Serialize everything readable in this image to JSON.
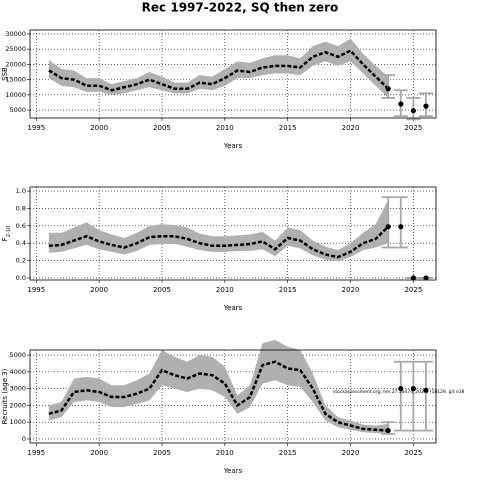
{
  "title": "Rec 1997-2022, SQ then zero",
  "chart_data": [
    {
      "type": "line",
      "xlabel": "Years",
      "ylabel": "SSB",
      "xlim": [
        1994.5,
        2026.8
      ],
      "xticks": [
        1995,
        2000,
        2005,
        2010,
        2015,
        2020,
        2025
      ],
      "ylim": [
        2400,
        31300
      ],
      "yticks": [
        5000,
        10000,
        15000,
        20000,
        25000,
        30000
      ],
      "grid": true,
      "color": "#000000",
      "band_color": "#b0b0b0",
      "errorbar_color": "#a8a8a8",
      "x": [
        1996,
        1997,
        1998,
        1999,
        2000,
        2001,
        2002,
        2003,
        2004,
        2005,
        2006,
        2007,
        2008,
        2009,
        2010,
        2011,
        2012,
        2013,
        2014,
        2015,
        2016,
        2017,
        2018,
        2019,
        2020,
        2021,
        2022,
        2023
      ],
      "values": [
        18000,
        15500,
        15000,
        13000,
        13000,
        11500,
        12500,
        13500,
        15000,
        13500,
        12000,
        12000,
        14000,
        13500,
        15500,
        18000,
        17500,
        19000,
        19500,
        19500,
        19000,
        22500,
        24000,
        22500,
        24500,
        20000,
        16000,
        12000
      ],
      "lower": [
        15500,
        13000,
        12500,
        11000,
        11000,
        10000,
        10500,
        11500,
        12500,
        11500,
        10500,
        10500,
        12000,
        11500,
        13000,
        15500,
        15500,
        16500,
        17000,
        17000,
        16500,
        19500,
        21000,
        19500,
        21000,
        17000,
        13000,
        9000
      ],
      "upper": [
        21500,
        18500,
        18000,
        15500,
        15500,
        13500,
        14500,
        15500,
        17500,
        16000,
        14000,
        14000,
        16500,
        16000,
        18500,
        21000,
        20500,
        22000,
        23000,
        23000,
        22000,
        26000,
        27500,
        26000,
        28500,
        23500,
        19500,
        16000
      ],
      "projection": {
        "x": [
          2023,
          2024,
          2025,
          2026
        ],
        "values": [
          12000,
          7000,
          4800,
          6300
        ],
        "lower": [
          9000,
          3000,
          2000,
          3000
        ],
        "upper": [
          16500,
          11500,
          9000,
          10500
        ]
      }
    },
    {
      "type": "line",
      "xlabel": "Years",
      "ylabel": "F",
      "ylabel_sub": "2-10",
      "xlim": [
        1994.5,
        2026.8
      ],
      "xticks": [
        1995,
        2000,
        2005,
        2010,
        2015,
        2020,
        2025
      ],
      "ylim": [
        -0.024,
        1.047
      ],
      "yticks": [
        {
          "value": 0,
          "label": "0.0"
        },
        0.2,
        0.4,
        0.6,
        0.8,
        {
          "value": 1,
          "label": "1.0"
        }
      ],
      "grid": true,
      "color": "#000000",
      "band_color": "#b0b0b0",
      "errorbar_color": "#a8a8a8",
      "x": [
        1996,
        1997,
        1998,
        1999,
        2000,
        2001,
        2002,
        2003,
        2004,
        2005,
        2006,
        2007,
        2008,
        2009,
        2010,
        2011,
        2012,
        2013,
        2014,
        2015,
        2016,
        2017,
        2018,
        2019,
        2020,
        2021,
        2022,
        2023
      ],
      "values": [
        0.37,
        0.38,
        0.43,
        0.48,
        0.42,
        0.38,
        0.35,
        0.4,
        0.47,
        0.48,
        0.48,
        0.45,
        0.4,
        0.37,
        0.37,
        0.38,
        0.39,
        0.42,
        0.33,
        0.46,
        0.43,
        0.33,
        0.27,
        0.24,
        0.3,
        0.4,
        0.45,
        0.59
      ],
      "lower": [
        0.29,
        0.3,
        0.34,
        0.38,
        0.33,
        0.3,
        0.27,
        0.31,
        0.38,
        0.39,
        0.39,
        0.36,
        0.32,
        0.3,
        0.3,
        0.31,
        0.31,
        0.33,
        0.25,
        0.37,
        0.34,
        0.26,
        0.21,
        0.19,
        0.24,
        0.32,
        0.35,
        0.4
      ],
      "upper": [
        0.52,
        0.52,
        0.58,
        0.64,
        0.55,
        0.5,
        0.46,
        0.52,
        0.6,
        0.62,
        0.61,
        0.58,
        0.51,
        0.48,
        0.48,
        0.49,
        0.5,
        0.53,
        0.43,
        0.58,
        0.55,
        0.43,
        0.36,
        0.32,
        0.4,
        0.52,
        0.62,
        0.9
      ],
      "projection": {
        "x": [
          2023,
          2024,
          2025,
          2026
        ],
        "values": [
          0.59,
          0.59,
          0,
          0
        ],
        "lower": [
          0.35,
          0.35,
          0,
          0
        ],
        "upper": [
          0.93,
          0.93,
          0,
          0
        ]
      }
    },
    {
      "type": "line",
      "xlabel": "Years",
      "ylabel": "Recruits (age 3)",
      "annotation": "stockassessment.org, her.27.3a47d_2024, r18129, git e38",
      "xlim": [
        1994.5,
        2026.8
      ],
      "xticks": [
        1995,
        2000,
        2005,
        2010,
        2015,
        2020,
        2025
      ],
      "ylim": [
        -240,
        5300
      ],
      "yticks": [
        0,
        1000,
        2000,
        3000,
        4000,
        5000
      ],
      "grid": true,
      "color": "#000000",
      "band_color": "#b0b0b0",
      "errorbar_color": "#a8a8a8",
      "x": [
        1996,
        1997,
        1998,
        1999,
        2000,
        2001,
        2002,
        2003,
        2004,
        2005,
        2006,
        2007,
        2008,
        2009,
        2010,
        2011,
        2012,
        2013,
        2014,
        2015,
        2016,
        2017,
        2018,
        2019,
        2020,
        2021,
        2022,
        2023
      ],
      "values": [
        1500,
        1700,
        2800,
        2900,
        2800,
        2500,
        2500,
        2700,
        3000,
        4100,
        3800,
        3600,
        3900,
        3800,
        3300,
        2000,
        2500,
        4400,
        4600,
        4200,
        4100,
        3000,
        1500,
        1000,
        800,
        600,
        550,
        500
      ],
      "lower": [
        1100,
        1300,
        2200,
        2300,
        2200,
        1900,
        1900,
        2100,
        2300,
        3200,
        3000,
        2800,
        3000,
        2900,
        2500,
        1500,
        1900,
        3300,
        3500,
        3200,
        3100,
        2200,
        1100,
        700,
        550,
        400,
        350,
        300
      ],
      "upper": [
        2000,
        2200,
        3600,
        3700,
        3600,
        3200,
        3200,
        3500,
        3900,
        5300,
        4900,
        4600,
        5000,
        4900,
        4300,
        2600,
        3200,
        5700,
        5900,
        5500,
        5300,
        3900,
        2000,
        1300,
        1100,
        850,
        800,
        900
      ],
      "projection": {
        "x": [
          2023,
          2024,
          2025,
          2026
        ],
        "values": [
          500,
          3000,
          3000,
          2900
        ],
        "lower": [
          300,
          500,
          500,
          500
        ],
        "upper": [
          1000,
          4600,
          4600,
          4600
        ]
      }
    }
  ]
}
